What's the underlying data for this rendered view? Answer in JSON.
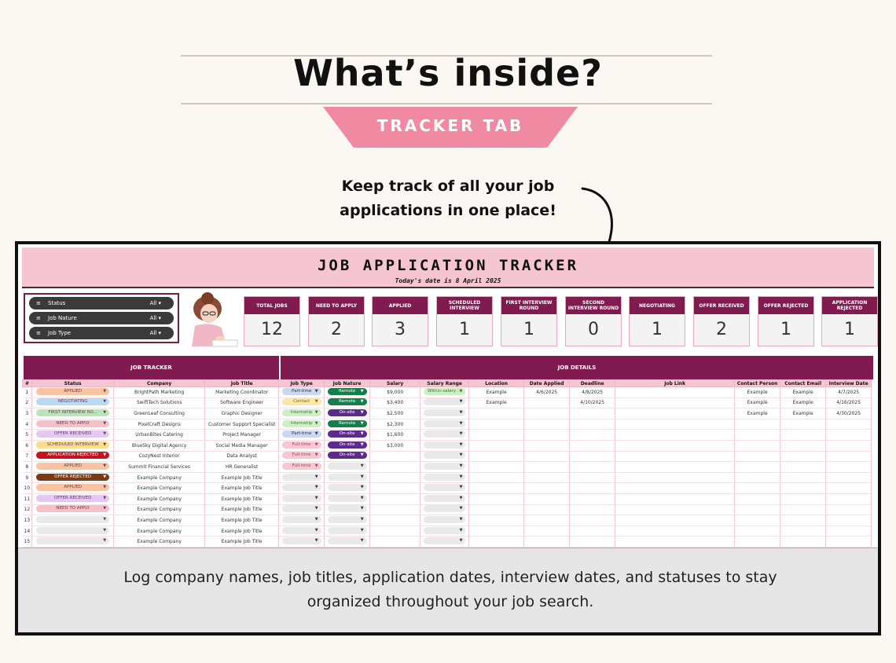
{
  "headline": "What’s inside?",
  "tab_label": "TRACKER TAB",
  "subline": "Keep track of all your job applications in one place!",
  "caption": "Log company names, job titles, application dates, interview dates, and statuses to stay organized throughout your job search.",
  "tracker": {
    "title": "JOB APPLICATION TRACKER",
    "date_line": "Today's date is 8 April 2025",
    "filters": [
      {
        "label": "Status",
        "value": "All"
      },
      {
        "label": "Job Nature",
        "value": "All"
      },
      {
        "label": "Job Type",
        "value": "All"
      }
    ],
    "kpis": [
      {
        "label": "TOTAL JOBS",
        "value": "12"
      },
      {
        "label": "NEED TO APPLY",
        "value": "2"
      },
      {
        "label": "APPLIED",
        "value": "3"
      },
      {
        "label": "SCHEDULED INTERVIEW",
        "value": "1"
      },
      {
        "label": "FIRST INTERVIEW ROUND",
        "value": "1"
      },
      {
        "label": "SECOND INTERVIEW ROUND",
        "value": "0"
      },
      {
        "label": "NEGOTIATING",
        "value": "1"
      },
      {
        "label": "OFFER RECEIVED",
        "value": "2"
      },
      {
        "label": "OFFER REJECTED",
        "value": "1"
      },
      {
        "label": "APPLICATION REJECTED",
        "value": "1"
      }
    ],
    "section_left": "JOB TRACKER",
    "section_right": "JOB DETAILS",
    "columns": [
      "#",
      "Status",
      "Company",
      "Job Title",
      "Job Type",
      "Job Nature",
      "Salary",
      "Salary Range",
      "Location",
      "Date Applied",
      "Deadline",
      "Job Link",
      "Contact Person",
      "Contact Email",
      "Interview Date"
    ],
    "colors": {
      "APPLIED": "#f7c3a0",
      "NEGOTIATING": "#b8daf2",
      "FIRST INTERVIEW RO...": "#b9e6b8",
      "NEED TO APPLY": "#f6c0c8",
      "OFFER RECEIVED": "#e3c9f2",
      "SCHEDULED INTERVIEW": "#f7df8e",
      "APPLICATION REJECTED": "#c0141e",
      "OFFER REJECTED": "#7b3a14",
      "Part-time": "#c9d8ee",
      "Contact": "#fbe7a6",
      "Internship": "#cfeec8",
      "Full-time": "#f6c8d2",
      "Remote": "#13804a",
      "On-site": "#5c2a8c",
      "Within salary ...": "#cfeec8",
      "empty": "#e9e9e9"
    },
    "rows": [
      {
        "n": "1",
        "status": "APPLIED",
        "company": "BrightPath Marketing",
        "title": "Marketing Coordinator",
        "type": "Part-time",
        "nature": "Remote",
        "salary": "$9,000",
        "range": "Within salary ...",
        "location": "Example",
        "applied": "4/6/2025",
        "deadline": "4/8/2025",
        "link": "",
        "person": "Example",
        "email": "Example",
        "interview": "4/7/2025"
      },
      {
        "n": "2",
        "status": "NEGOTIATING",
        "company": "SwiftTech Solutions",
        "title": "Software Engineer",
        "type": "Contact",
        "nature": "Remote",
        "salary": "$3,400",
        "range": "",
        "location": "Example",
        "applied": "",
        "deadline": "4/10/2025",
        "link": "",
        "person": "Example",
        "email": "Example",
        "interview": "4/16/2025"
      },
      {
        "n": "3",
        "status": "FIRST INTERVIEW RO...",
        "company": "GreenLeaf Consulting",
        "title": "Graphic Designer",
        "type": "Internship",
        "nature": "On-site",
        "salary": "$2,500",
        "range": "",
        "location": "",
        "applied": "",
        "deadline": "",
        "link": "",
        "person": "Example",
        "email": "Example",
        "interview": "4/30/2025"
      },
      {
        "n": "4",
        "status": "NEED TO APPLY",
        "company": "PixelCraft Designs",
        "title": "Customer Support Specialist",
        "type": "Internship",
        "nature": "Remote",
        "salary": "$2,300",
        "range": "",
        "location": "",
        "applied": "",
        "deadline": "",
        "link": "",
        "person": "",
        "email": "",
        "interview": ""
      },
      {
        "n": "5",
        "status": "OFFER RECEIVED",
        "company": "UrbanBites Catering",
        "title": "Project Manager",
        "type": "Part-time",
        "nature": "On-site",
        "salary": "$1,600",
        "range": "",
        "location": "",
        "applied": "",
        "deadline": "",
        "link": "",
        "person": "",
        "email": "",
        "interview": ""
      },
      {
        "n": "6",
        "status": "SCHEDULED INTERVIEW",
        "company": "BlueSky Digital Agency",
        "title": "Social Media Manager",
        "type": "Full-time",
        "nature": "On-site",
        "salary": "$3,000",
        "range": "",
        "location": "",
        "applied": "",
        "deadline": "",
        "link": "",
        "person": "",
        "email": "",
        "interview": ""
      },
      {
        "n": "7",
        "status": "APPLICATION REJECTED",
        "company": "CozyNest Interior",
        "title": "Data Analyst",
        "type": "Full-time",
        "nature": "On-site",
        "salary": "",
        "range": "",
        "location": "",
        "applied": "",
        "deadline": "",
        "link": "",
        "person": "",
        "email": "",
        "interview": ""
      },
      {
        "n": "8",
        "status": "APPLIED",
        "company": "Summit Financial Services",
        "title": "HR Generalist",
        "type": "Full-time",
        "nature": "",
        "salary": "",
        "range": "",
        "location": "",
        "applied": "",
        "deadline": "",
        "link": "",
        "person": "",
        "email": "",
        "interview": ""
      },
      {
        "n": "9",
        "status": "OFFER REJECTED",
        "company": "Example Company",
        "title": "Example Job Title",
        "type": "",
        "nature": "",
        "salary": "",
        "range": "",
        "location": "",
        "applied": "",
        "deadline": "",
        "link": "",
        "person": "",
        "email": "",
        "interview": ""
      },
      {
        "n": "10",
        "status": "APPLIED",
        "company": "Example Company",
        "title": "Example Job Title",
        "type": "",
        "nature": "",
        "salary": "",
        "range": "",
        "location": "",
        "applied": "",
        "deadline": "",
        "link": "",
        "person": "",
        "email": "",
        "interview": ""
      },
      {
        "n": "11",
        "status": "OFFER RECEIVED",
        "company": "Example Company",
        "title": "Example Job Title",
        "type": "",
        "nature": "",
        "salary": "",
        "range": "",
        "location": "",
        "applied": "",
        "deadline": "",
        "link": "",
        "person": "",
        "email": "",
        "interview": ""
      },
      {
        "n": "12",
        "status": "NEED TO APPLY",
        "company": "Example Company",
        "title": "Example Job Title",
        "type": "",
        "nature": "",
        "salary": "",
        "range": "",
        "location": "",
        "applied": "",
        "deadline": "",
        "link": "",
        "person": "",
        "email": "",
        "interview": ""
      },
      {
        "n": "13",
        "status": "",
        "company": "Example Company",
        "title": "Example Job Title",
        "type": "",
        "nature": "",
        "salary": "",
        "range": "",
        "location": "",
        "applied": "",
        "deadline": "",
        "link": "",
        "person": "",
        "email": "",
        "interview": ""
      },
      {
        "n": "14",
        "status": "",
        "company": "Example Company",
        "title": "Example Job Title",
        "type": "",
        "nature": "",
        "salary": "",
        "range": "",
        "location": "",
        "applied": "",
        "deadline": "",
        "link": "",
        "person": "",
        "email": "",
        "interview": ""
      },
      {
        "n": "15",
        "status": "",
        "company": "Example Company",
        "title": "Example Job Title",
        "type": "",
        "nature": "",
        "salary": "",
        "range": "",
        "location": "",
        "applied": "",
        "deadline": "",
        "link": "",
        "person": "",
        "email": "",
        "interview": ""
      }
    ]
  }
}
